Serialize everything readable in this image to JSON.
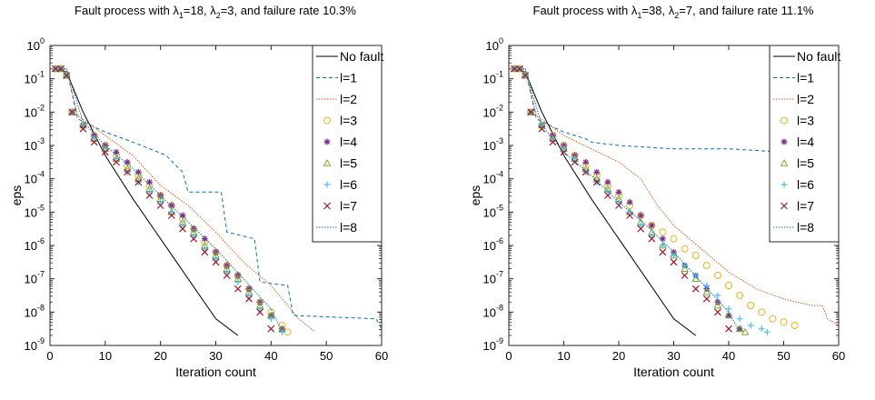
{
  "chart_data": [
    {
      "type": "line",
      "title": "Fault process with λ1=18, λ2=3, and failure rate 10.3%",
      "title_parts": {
        "prefix": "Fault process with ",
        "lambda1_value": "=18, ",
        "lambda2_value": "=3, and failure rate 10.3%"
      },
      "xlabel": "Iteration count",
      "ylabel": "eps",
      "xlim": [
        0,
        60
      ],
      "ylim_exp": [
        -9,
        0
      ],
      "yscale": "log",
      "xticks": [
        0,
        10,
        20,
        30,
        40,
        50,
        60
      ],
      "yticks_exp": [
        0,
        -1,
        -2,
        -3,
        -4,
        -5,
        -6,
        -7,
        -8,
        -9
      ],
      "legend_position": "top-right",
      "series": [
        {
          "name": "No fault",
          "style": "line",
          "color": "#000000",
          "x": [
            1,
            3,
            6,
            10,
            15,
            20,
            25,
            30,
            34
          ],
          "log_y": [
            -0.7,
            -0.8,
            -2.0,
            -3.3,
            -4.6,
            -5.8,
            -7.0,
            -8.2,
            -8.7
          ]
        },
        {
          "name": "l=1",
          "style": "dashed",
          "color": "#0072BD",
          "x": [
            1,
            3,
            5,
            10,
            15,
            21,
            24,
            25,
            31,
            32,
            37,
            38,
            43,
            44,
            59,
            60
          ],
          "log_y": [
            -0.7,
            -0.7,
            -2.2,
            -2.6,
            -2.9,
            -3.3,
            -3.8,
            -4.4,
            -4.4,
            -5.6,
            -5.8,
            -7.1,
            -7.2,
            -8.1,
            -8.2,
            -8.5
          ]
        },
        {
          "name": "l=2",
          "style": "dotted",
          "color": "#D95319",
          "x": [
            1,
            3,
            5,
            10,
            15,
            20,
            25,
            30,
            35,
            40,
            45,
            48
          ],
          "log_y": [
            -0.7,
            -0.7,
            -2.1,
            -2.7,
            -3.3,
            -4.2,
            -4.8,
            -5.6,
            -6.5,
            -7.2,
            -8.2,
            -8.6
          ]
        },
        {
          "name": "l=3",
          "style": "marker",
          "marker": "o",
          "color": "#EDB120",
          "x": [
            4,
            6,
            8,
            10,
            12,
            14,
            16,
            18,
            20,
            22,
            24,
            26,
            28,
            30,
            32,
            34,
            36,
            38,
            40,
            42,
            43
          ],
          "log_y": [
            -2.0,
            -2.4,
            -2.7,
            -3.0,
            -3.3,
            -3.6,
            -3.9,
            -4.2,
            -4.5,
            -4.8,
            -5.2,
            -5.5,
            -5.9,
            -6.2,
            -6.6,
            -6.9,
            -7.3,
            -7.7,
            -8.0,
            -8.4,
            -8.6
          ]
        },
        {
          "name": "l=4",
          "style": "marker",
          "marker": "*",
          "color": "#7E2F8E",
          "x": [
            4,
            6,
            8,
            10,
            12,
            14,
            16,
            18,
            20,
            22,
            24,
            26,
            28,
            30,
            32,
            34,
            36,
            38,
            40,
            42
          ],
          "log_y": [
            -2.0,
            -2.4,
            -2.7,
            -3.0,
            -3.2,
            -3.5,
            -3.8,
            -4.1,
            -4.5,
            -4.8,
            -5.1,
            -5.5,
            -5.8,
            -6.2,
            -6.6,
            -6.9,
            -7.3,
            -7.7,
            -8.1,
            -8.5
          ]
        },
        {
          "name": "l=5",
          "style": "marker",
          "marker": "^",
          "color": "#77AC30",
          "x": [
            4,
            6,
            8,
            10,
            12,
            14,
            16,
            18,
            20,
            22,
            24,
            26,
            28,
            30,
            32,
            34,
            36,
            38,
            40,
            42
          ],
          "log_y": [
            -2.0,
            -2.4,
            -2.8,
            -3.1,
            -3.4,
            -3.7,
            -4.0,
            -4.3,
            -4.6,
            -5.0,
            -5.3,
            -5.6,
            -6.0,
            -6.3,
            -6.7,
            -7.0,
            -7.4,
            -7.8,
            -8.1,
            -8.5
          ]
        },
        {
          "name": "l=6",
          "style": "marker",
          "marker": "+",
          "color": "#4DBEEE",
          "x": [
            4,
            6,
            8,
            10,
            12,
            14,
            16,
            18,
            20,
            22,
            24,
            26,
            28,
            30,
            32,
            34,
            36,
            38,
            40,
            42
          ],
          "log_y": [
            -2.0,
            -2.4,
            -2.8,
            -3.1,
            -3.4,
            -3.8,
            -4.1,
            -4.4,
            -4.7,
            -5.0,
            -5.4,
            -5.7,
            -6.1,
            -6.4,
            -6.8,
            -7.1,
            -7.5,
            -7.9,
            -8.2,
            -8.6
          ]
        },
        {
          "name": "l=7",
          "style": "marker",
          "marker": "x",
          "color": "#A2142F",
          "x": [
            4,
            6,
            8,
            10,
            12,
            14,
            16,
            18,
            20,
            22,
            24,
            26,
            28,
            30,
            32,
            34,
            36,
            38,
            40
          ],
          "log_y": [
            -2.0,
            -2.5,
            -2.9,
            -3.2,
            -3.5,
            -3.8,
            -4.1,
            -4.5,
            -4.8,
            -5.1,
            -5.5,
            -5.8,
            -6.2,
            -6.5,
            -6.9,
            -7.3,
            -7.6,
            -8.0,
            -8.5
          ]
        },
        {
          "name": "l=8",
          "style": "dotted",
          "color": "#0072BD",
          "x": [
            1,
            3,
            6,
            10,
            15,
            20,
            25,
            30,
            35,
            40,
            42
          ],
          "log_y": [
            -0.7,
            -0.7,
            -2.3,
            -3.0,
            -3.7,
            -4.5,
            -5.3,
            -6.1,
            -7.0,
            -7.9,
            -8.6
          ]
        }
      ]
    },
    {
      "type": "line",
      "title": "Fault process with λ1=38, λ2=7, and failure rate 11.1%",
      "title_parts": {
        "prefix": "Fault process with ",
        "lambda1_value": "=38, ",
        "lambda2_value": "=7, and failure rate 11.1%"
      },
      "xlabel": "Iteration count",
      "ylabel": "eps",
      "xlim": [
        0,
        60
      ],
      "ylim_exp": [
        -9,
        0
      ],
      "yscale": "log",
      "xticks": [
        0,
        10,
        20,
        30,
        40,
        50,
        60
      ],
      "yticks_exp": [
        0,
        -1,
        -2,
        -3,
        -4,
        -5,
        -6,
        -7,
        -8,
        -9
      ],
      "legend_position": "top-right",
      "series": [
        {
          "name": "No fault",
          "style": "line",
          "color": "#000000",
          "x": [
            1,
            3,
            6,
            10,
            15,
            20,
            25,
            30,
            34
          ],
          "log_y": [
            -0.7,
            -0.8,
            -2.0,
            -3.3,
            -4.6,
            -5.8,
            -7.0,
            -8.2,
            -8.7
          ]
        },
        {
          "name": "l=1",
          "style": "dashed",
          "color": "#0072BD",
          "x": [
            1,
            3,
            5,
            10,
            14,
            15,
            20,
            30,
            40,
            50,
            52,
            53,
            56,
            57,
            59,
            60
          ],
          "log_y": [
            -0.7,
            -0.7,
            -2.2,
            -2.6,
            -2.8,
            -2.9,
            -3.0,
            -3.1,
            -3.1,
            -3.2,
            -3.5,
            -3.8,
            -3.9,
            -4.1,
            -4.2,
            -4.3
          ]
        },
        {
          "name": "l=2",
          "style": "dotted",
          "color": "#D95319",
          "x": [
            1,
            3,
            5,
            10,
            15,
            20,
            24,
            27,
            30,
            35,
            40,
            45,
            50,
            55,
            57,
            58,
            60
          ],
          "log_y": [
            -0.7,
            -0.7,
            -2.1,
            -2.7,
            -3.1,
            -3.5,
            -4.0,
            -4.8,
            -5.4,
            -6.1,
            -6.8,
            -7.3,
            -7.6,
            -7.8,
            -7.8,
            -8.2,
            -8.4
          ]
        },
        {
          "name": "l=3",
          "style": "marker",
          "marker": "o",
          "color": "#EDB120",
          "x": [
            4,
            6,
            8,
            10,
            12,
            14,
            16,
            18,
            20,
            22,
            24,
            26,
            28,
            30,
            32,
            34,
            36,
            38,
            40,
            42,
            44,
            46,
            48,
            50,
            52
          ],
          "log_y": [
            -2.0,
            -2.4,
            -2.7,
            -3.0,
            -3.3,
            -3.6,
            -3.9,
            -4.2,
            -4.5,
            -4.8,
            -5.1,
            -5.4,
            -5.6,
            -5.8,
            -6.1,
            -6.3,
            -6.6,
            -6.9,
            -7.2,
            -7.5,
            -7.8,
            -8.0,
            -8.2,
            -8.3,
            -8.4
          ]
        },
        {
          "name": "l=4",
          "style": "marker",
          "marker": "*",
          "color": "#7E2F8E",
          "x": [
            4,
            6,
            8,
            10,
            12,
            14,
            16,
            18,
            20,
            22,
            24,
            26,
            28,
            30,
            32,
            34,
            36,
            38,
            40,
            42
          ],
          "log_y": [
            -2.0,
            -2.4,
            -2.7,
            -3.0,
            -3.3,
            -3.5,
            -3.8,
            -4.1,
            -4.4,
            -4.7,
            -5.1,
            -5.4,
            -5.8,
            -6.2,
            -6.6,
            -6.9,
            -7.3,
            -7.7,
            -8.1,
            -8.5
          ]
        },
        {
          "name": "l=5",
          "style": "marker",
          "marker": "^",
          "color": "#77AC30",
          "x": [
            4,
            6,
            8,
            10,
            12,
            14,
            16,
            18,
            20,
            22,
            24,
            26,
            28,
            30,
            32,
            34,
            36,
            38,
            40,
            42,
            43
          ],
          "log_y": [
            -2.0,
            -2.4,
            -2.8,
            -3.1,
            -3.4,
            -3.7,
            -4.0,
            -4.3,
            -4.6,
            -5.0,
            -5.3,
            -5.6,
            -6.0,
            -6.3,
            -6.7,
            -7.0,
            -7.4,
            -7.8,
            -8.1,
            -8.5,
            -8.6
          ]
        },
        {
          "name": "l=6",
          "style": "marker",
          "marker": "+",
          "color": "#4DBEEE",
          "x": [
            4,
            6,
            8,
            10,
            12,
            14,
            16,
            18,
            20,
            22,
            24,
            26,
            28,
            30,
            32,
            34,
            36,
            38,
            40,
            42,
            44,
            46,
            47
          ],
          "log_y": [
            -2.0,
            -2.4,
            -2.8,
            -3.1,
            -3.4,
            -3.8,
            -4.1,
            -4.4,
            -4.7,
            -5.0,
            -5.4,
            -5.7,
            -6.0,
            -6.3,
            -6.6,
            -6.9,
            -7.2,
            -7.5,
            -7.9,
            -8.2,
            -8.4,
            -8.5,
            -8.6
          ]
        },
        {
          "name": "l=7",
          "style": "marker",
          "marker": "x",
          "color": "#A2142F",
          "x": [
            4,
            6,
            8,
            10,
            12,
            14,
            16,
            18,
            20,
            22,
            24,
            26,
            28,
            30,
            32,
            34,
            36,
            38,
            40
          ],
          "log_y": [
            -2.0,
            -2.5,
            -2.9,
            -3.2,
            -3.5,
            -3.8,
            -4.1,
            -4.5,
            -4.8,
            -5.1,
            -5.5,
            -5.8,
            -6.2,
            -6.5,
            -6.9,
            -7.3,
            -7.6,
            -8.0,
            -8.5
          ]
        },
        {
          "name": "l=8",
          "style": "dotted",
          "color": "#0072BD",
          "x": [
            1,
            3,
            6,
            10,
            15,
            20,
            25,
            30,
            35,
            40,
            42
          ],
          "log_y": [
            -0.7,
            -0.7,
            -2.4,
            -3.2,
            -3.9,
            -4.7,
            -5.4,
            -6.2,
            -7.1,
            -8.0,
            -8.6
          ]
        }
      ]
    }
  ]
}
